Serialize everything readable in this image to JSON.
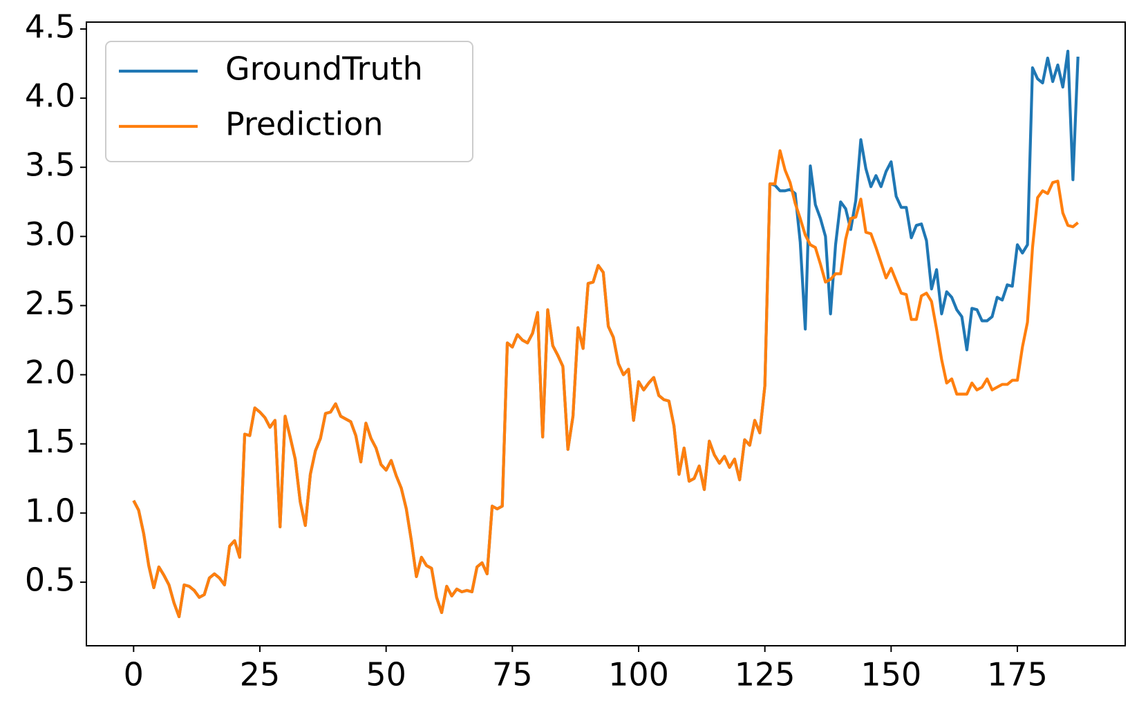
{
  "chart_data": {
    "type": "line",
    "x": [
      0,
      1,
      2,
      3,
      4,
      5,
      6,
      7,
      8,
      9,
      10,
      11,
      12,
      13,
      14,
      15,
      16,
      17,
      18,
      19,
      20,
      21,
      22,
      23,
      24,
      25,
      26,
      27,
      28,
      29,
      30,
      31,
      32,
      33,
      34,
      35,
      36,
      37,
      38,
      39,
      40,
      41,
      42,
      43,
      44,
      45,
      46,
      47,
      48,
      49,
      50,
      51,
      52,
      53,
      54,
      55,
      56,
      57,
      58,
      59,
      60,
      61,
      62,
      63,
      64,
      65,
      66,
      67,
      68,
      69,
      70,
      71,
      72,
      73,
      74,
      75,
      76,
      77,
      78,
      79,
      80,
      81,
      82,
      83,
      84,
      85,
      86,
      87,
      88,
      89,
      90,
      91,
      92,
      93,
      94,
      95,
      96,
      97,
      98,
      99,
      100,
      101,
      102,
      103,
      104,
      105,
      106,
      107,
      108,
      109,
      110,
      111,
      112,
      113,
      114,
      115,
      116,
      117,
      118,
      119,
      120,
      121,
      122,
      123,
      124,
      125,
      126,
      127,
      128,
      129,
      130,
      131,
      132,
      133,
      134,
      135,
      136,
      137,
      138,
      139,
      140,
      141,
      142,
      143,
      144,
      145,
      146,
      147,
      148,
      149,
      150,
      151,
      152,
      153,
      154,
      155,
      156,
      157,
      158,
      159,
      160,
      161,
      162,
      163,
      164,
      165,
      166,
      167,
      168,
      169,
      170,
      171,
      172,
      173,
      174,
      175,
      176,
      177,
      178,
      179,
      180,
      181,
      182,
      183,
      184,
      185,
      186,
      187
    ],
    "series": [
      {
        "name": "GroundTruth",
        "color": "#1f77b4",
        "values": [
          1.09,
          1.02,
          0.85,
          0.62,
          0.46,
          0.61,
          0.55,
          0.48,
          0.35,
          0.25,
          0.48,
          0.47,
          0.44,
          0.39,
          0.41,
          0.53,
          0.56,
          0.53,
          0.48,
          0.76,
          0.8,
          0.68,
          1.57,
          1.56,
          1.76,
          1.73,
          1.69,
          1.62,
          1.67,
          0.9,
          1.7,
          1.55,
          1.39,
          1.08,
          0.91,
          1.28,
          1.45,
          1.54,
          1.72,
          1.73,
          1.79,
          1.7,
          1.68,
          1.66,
          1.56,
          1.37,
          1.65,
          1.54,
          1.47,
          1.35,
          1.31,
          1.38,
          1.27,
          1.18,
          1.03,
          0.8,
          0.54,
          0.68,
          0.62,
          0.6,
          0.39,
          0.28,
          0.47,
          0.4,
          0.45,
          0.43,
          0.44,
          0.43,
          0.61,
          0.64,
          0.56,
          1.05,
          1.03,
          1.05,
          2.23,
          2.2,
          2.29,
          2.25,
          2.23,
          2.3,
          2.45,
          1.55,
          2.47,
          2.21,
          2.14,
          2.06,
          1.46,
          1.7,
          2.34,
          2.19,
          2.66,
          2.67,
          2.79,
          2.74,
          2.35,
          2.27,
          2.08,
          2.0,
          2.04,
          1.67,
          1.95,
          1.89,
          1.94,
          1.98,
          1.85,
          1.82,
          1.81,
          1.63,
          1.28,
          1.47,
          1.23,
          1.25,
          1.34,
          1.17,
          1.52,
          1.42,
          1.36,
          1.41,
          1.33,
          1.39,
          1.24,
          1.53,
          1.49,
          1.67,
          1.58,
          1.92,
          3.38,
          3.37,
          3.33,
          3.33,
          3.34,
          3.31,
          2.96,
          2.33,
          3.51,
          3.23,
          3.13,
          3.0,
          2.44,
          2.94,
          3.25,
          3.2,
          3.05,
          3.26,
          3.7,
          3.49,
          3.36,
          3.44,
          3.36,
          3.47,
          3.54,
          3.29,
          3.21,
          3.21,
          2.99,
          3.08,
          3.09,
          2.97,
          2.62,
          2.76,
          2.44,
          2.6,
          2.56,
          2.47,
          2.42,
          2.18,
          2.48,
          2.47,
          2.39,
          2.39,
          2.42,
          2.56,
          2.54,
          2.65,
          2.64,
          2.94,
          2.88,
          2.94,
          4.22,
          4.14,
          4.11,
          4.29,
          4.12,
          4.24,
          4.08,
          4.34,
          3.41,
          4.3
        ]
      },
      {
        "name": "Prediction",
        "color": "#ff7f0e",
        "values": [
          1.09,
          1.02,
          0.85,
          0.62,
          0.46,
          0.61,
          0.55,
          0.48,
          0.35,
          0.25,
          0.48,
          0.47,
          0.44,
          0.39,
          0.41,
          0.53,
          0.56,
          0.53,
          0.48,
          0.76,
          0.8,
          0.68,
          1.57,
          1.56,
          1.76,
          1.73,
          1.69,
          1.62,
          1.67,
          0.9,
          1.7,
          1.55,
          1.39,
          1.08,
          0.91,
          1.28,
          1.45,
          1.54,
          1.72,
          1.73,
          1.79,
          1.7,
          1.68,
          1.66,
          1.56,
          1.37,
          1.65,
          1.54,
          1.47,
          1.35,
          1.31,
          1.38,
          1.27,
          1.18,
          1.03,
          0.8,
          0.54,
          0.68,
          0.62,
          0.6,
          0.39,
          0.28,
          0.47,
          0.4,
          0.45,
          0.43,
          0.44,
          0.43,
          0.61,
          0.64,
          0.56,
          1.05,
          1.03,
          1.05,
          2.23,
          2.2,
          2.29,
          2.25,
          2.23,
          2.3,
          2.45,
          1.55,
          2.47,
          2.21,
          2.14,
          2.06,
          1.46,
          1.7,
          2.34,
          2.19,
          2.66,
          2.67,
          2.79,
          2.74,
          2.35,
          2.27,
          2.08,
          2.0,
          2.04,
          1.67,
          1.95,
          1.89,
          1.94,
          1.98,
          1.85,
          1.82,
          1.81,
          1.63,
          1.28,
          1.47,
          1.23,
          1.25,
          1.34,
          1.17,
          1.52,
          1.42,
          1.36,
          1.41,
          1.33,
          1.39,
          1.24,
          1.53,
          1.49,
          1.67,
          1.58,
          1.92,
          3.38,
          3.38,
          3.62,
          3.48,
          3.39,
          3.24,
          3.13,
          3.01,
          2.94,
          2.92,
          2.8,
          2.67,
          2.69,
          2.73,
          2.73,
          2.98,
          3.13,
          3.14,
          3.27,
          3.03,
          3.02,
          2.92,
          2.81,
          2.7,
          2.77,
          2.68,
          2.59,
          2.58,
          2.4,
          2.4,
          2.57,
          2.59,
          2.53,
          2.33,
          2.11,
          1.94,
          1.97,
          1.86,
          1.86,
          1.86,
          1.94,
          1.89,
          1.91,
          1.97,
          1.89,
          1.91,
          1.93,
          1.93,
          1.96,
          1.96,
          2.2,
          2.38,
          2.92,
          3.28,
          3.33,
          3.31,
          3.39,
          3.4,
          3.17,
          3.08,
          3.07,
          3.1
        ]
      }
    ],
    "xlim": [
      -9.35,
      196.35
    ],
    "ylim": [
      0.04,
      4.55
    ],
    "xticks": [
      0,
      25,
      50,
      75,
      100,
      125,
      150,
      175
    ],
    "yticks": [
      0.5,
      {
        "value": 1,
        "label": "1.0"
      },
      1.5,
      {
        "value": 2,
        "label": "2.0"
      },
      2.5,
      {
        "value": 3,
        "label": "3.0"
      },
      3.5,
      {
        "value": 4,
        "label": "4.0"
      },
      4.5
    ],
    "legend": "upper left",
    "grid": false
  }
}
